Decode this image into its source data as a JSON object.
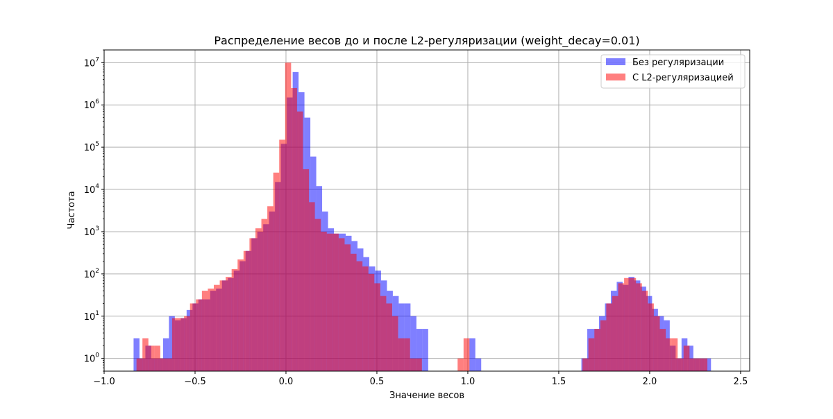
{
  "chart_data": {
    "type": "histogram",
    "title": "Распределение весов до и после L2-регуляризации (weight_decay=0.01)",
    "xlabel": "Значение весов",
    "ylabel": "Частота",
    "xlim": [
      -1.0,
      2.55
    ],
    "ylim": [
      0.5,
      20000000
    ],
    "yscale": "log",
    "grid": true,
    "legend_position": "top-right",
    "x_ticks": [
      -1.0,
      -0.5,
      0.0,
      0.5,
      1.0,
      1.5,
      2.0,
      2.5
    ],
    "x_tick_labels": [
      "−1.0",
      "−0.5",
      "0.0",
      "0.5",
      "1.0",
      "1.5",
      "2.0",
      "2.5"
    ],
    "y_ticks": [
      1,
      10,
      100,
      1000,
      10000,
      100000,
      1000000,
      10000000
    ],
    "y_tick_labels": [
      {
        "base": "10",
        "exp": "0"
      },
      {
        "base": "10",
        "exp": "1"
      },
      {
        "base": "10",
        "exp": "2"
      },
      {
        "base": "10",
        "exp": "3"
      },
      {
        "base": "10",
        "exp": "4"
      },
      {
        "base": "10",
        "exp": "5"
      },
      {
        "base": "10",
        "exp": "6"
      },
      {
        "base": "10",
        "exp": "7"
      }
    ],
    "series": [
      {
        "name": "Без регуляризации",
        "color": "#0000ff",
        "opacity": 0.5,
        "x_start": -0.838,
        "bin_width": 0.0324,
        "counts": [
          3,
          1,
          2,
          1,
          1,
          3,
          10,
          8,
          9,
          14,
          20,
          25,
          25,
          40,
          45,
          70,
          80,
          120,
          200,
          350,
          700,
          1000,
          1500,
          3000,
          15000,
          120000,
          1500000,
          6000000,
          2000000,
          500000,
          60000,
          12000,
          3000,
          1200,
          900,
          900,
          800,
          600,
          400,
          250,
          150,
          120,
          70,
          40,
          30,
          20,
          20,
          10,
          5,
          5,
          0,
          0,
          0,
          0,
          0,
          0,
          0,
          3,
          1,
          0,
          0,
          0,
          0,
          0,
          0,
          0,
          0,
          0,
          0,
          0,
          0,
          0,
          0,
          0,
          0,
          0,
          1,
          5,
          5,
          10,
          20,
          40,
          65,
          55,
          85,
          70,
          50,
          30,
          15,
          10,
          8,
          2,
          1,
          3,
          2,
          1,
          1,
          1
        ]
      },
      {
        "name": "С L2-регуляризацией",
        "color": "#ff0000",
        "opacity": 0.5,
        "x_start": -0.822,
        "bin_width": 0.0327,
        "counts": [
          1,
          3,
          2,
          2,
          1,
          1,
          9,
          9,
          10,
          20,
          25,
          40,
          45,
          55,
          70,
          85,
          130,
          220,
          350,
          700,
          1200,
          2000,
          4000,
          25000,
          150000,
          10000000,
          2500000,
          700000,
          30000,
          5000,
          2000,
          1000,
          900,
          900,
          700,
          500,
          300,
          200,
          150,
          100,
          60,
          30,
          20,
          10,
          3,
          3,
          1,
          1,
          0,
          0,
          0,
          0,
          0,
          0,
          1,
          3,
          0,
          0,
          0,
          0,
          0,
          0,
          0,
          0,
          0,
          0,
          0,
          0,
          0,
          0,
          0,
          0,
          0,
          0,
          0,
          1,
          3,
          5,
          8,
          20,
          30,
          60,
          80,
          80,
          60,
          40,
          20,
          10,
          5,
          3,
          3,
          1,
          2,
          1,
          1,
          1
        ]
      }
    ]
  }
}
